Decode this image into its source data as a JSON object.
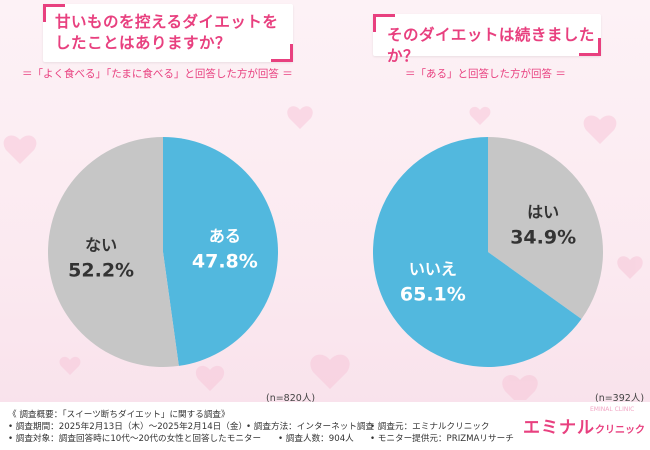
{
  "colors": {
    "accent": "#e8407f",
    "gray": "#c6c6c6",
    "blue": "#52b8de"
  },
  "left": {
    "question_line1": "甘いものを控えるダイエットを",
    "question_line2": "したことはありますか？",
    "subtitle": "＝「よく食べる」「たまに食べる」と回答した方が回答 ＝",
    "n_label": "(n=820人)"
  },
  "right": {
    "question": "そのダイエットは続きましたか？",
    "subtitle": "＝「ある」と回答した方が回答 ＝",
    "n_label": "(n=392人)"
  },
  "chart_data": [
    {
      "type": "pie",
      "slices": [
        {
          "label": "ある",
          "value": 47.8,
          "display": "47.8%",
          "color": "#52b8de"
        },
        {
          "label": "ない",
          "value": 52.2,
          "display": "52.2%",
          "color": "#c6c6c6"
        }
      ]
    },
    {
      "type": "pie",
      "slices": [
        {
          "label": "はい",
          "value": 34.9,
          "display": "34.9%",
          "color": "#c6c6c6"
        },
        {
          "label": "いいえ",
          "value": 65.1,
          "display": "65.1%",
          "color": "#52b8de"
        }
      ]
    }
  ],
  "footer": {
    "line1a": "《 調査概要：「スイーツ断ちダイエット」に関する調査》",
    "line2a": "• 調査期間：2025年2月13日（木）〜2025年2月14日（金）",
    "line2b": "• 調査方法：インターネット調査",
    "line2c": "• 調査元：エミナルクリニック",
    "line3a": "• 調査対象：調査回答時に10代〜20代の女性と回答したモニター",
    "line3b": "• 調査人数：904人",
    "line3c": "• モニター提供元：PRIZMAリサーチ",
    "logo_main": "エミナル",
    "logo_small": "クリニック",
    "logo_sub": "EMINAL CLINIC"
  }
}
